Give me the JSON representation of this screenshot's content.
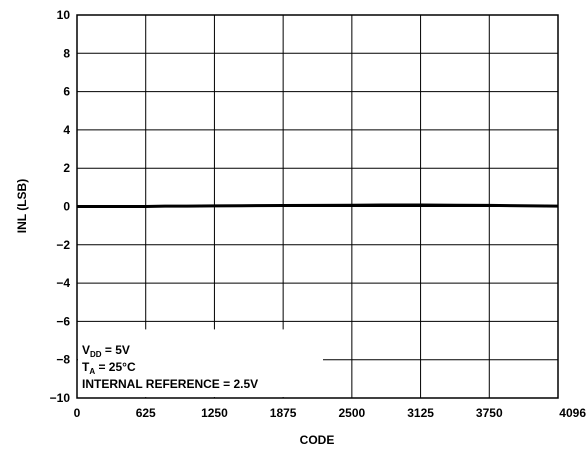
{
  "chart_data": {
    "type": "line",
    "xlabel": "CODE",
    "ylabel": "INL (LSB)",
    "x_ticks": [
      "0",
      "625",
      "1250",
      "1875",
      "2500",
      "3125",
      "3750",
      "4096"
    ],
    "y_ticks": [
      "10",
      "8",
      "6",
      "4",
      "2",
      "0",
      "−2",
      "−4",
      "−6",
      "−8",
      "−10"
    ],
    "xlim": [
      0,
      4096
    ],
    "ylim": [
      -10,
      10
    ],
    "grid": true,
    "series": [
      {
        "x": [
          0,
          300,
          625,
          800,
          1000,
          1250,
          1500,
          1875,
          2200,
          2500,
          2800,
          3125,
          3450,
          3750,
          4096
        ],
        "y": [
          0,
          0,
          0,
          0.02,
          0.02,
          0.03,
          0.04,
          0.05,
          0.06,
          0.07,
          0.08,
          0.08,
          0.07,
          0.06,
          0.02
        ]
      }
    ],
    "annotations": {
      "vdd": {
        "main": "V",
        "sub": "DD",
        "rest": " = 5V"
      },
      "ta": {
        "main": "T",
        "sub": "A",
        "rest": " = 25°C"
      },
      "ref": "INTERNAL REFERENCE = 2.5V"
    },
    "colors": {
      "line": "#000000",
      "grid": "#000000",
      "background": "#ffffff"
    }
  }
}
